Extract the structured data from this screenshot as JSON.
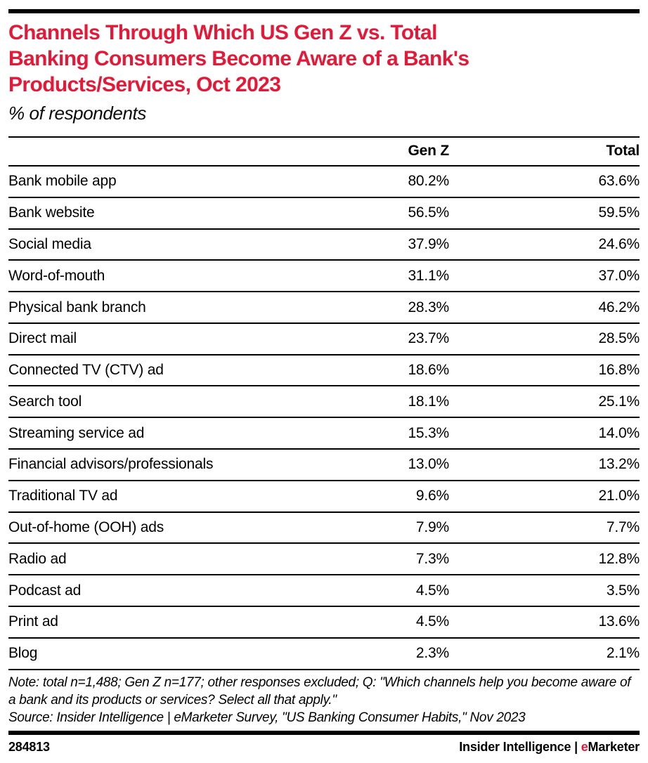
{
  "colors": {
    "accent_red": "#e31937",
    "text_black": "#000000",
    "background": "#ffffff"
  },
  "header": {
    "title_lines": [
      "Channels Through Which US Gen Z vs. Total",
      "Banking Consumers Become Aware of a Bank's",
      "Products/Services, Oct 2023"
    ],
    "subtitle": "% of respondents"
  },
  "table": {
    "columns": {
      "channel": "",
      "genz": "Gen Z",
      "total": "Total"
    },
    "rows": [
      {
        "channel": "Bank mobile app",
        "genz": "80.2%",
        "total": "63.6%"
      },
      {
        "channel": "Bank website",
        "genz": "56.5%",
        "total": "59.5%"
      },
      {
        "channel": "Social media",
        "genz": "37.9%",
        "total": "24.6%"
      },
      {
        "channel": "Word-of-mouth",
        "genz": "31.1%",
        "total": "37.0%"
      },
      {
        "channel": "Physical bank branch",
        "genz": "28.3%",
        "total": "46.2%"
      },
      {
        "channel": "Direct mail",
        "genz": "23.7%",
        "total": "28.5%"
      },
      {
        "channel": "Connected TV (CTV) ad",
        "genz": "18.6%",
        "total": "16.8%"
      },
      {
        "channel": "Search tool",
        "genz": "18.1%",
        "total": "25.1%"
      },
      {
        "channel": "Streaming service ad",
        "genz": "15.3%",
        "total": "14.0%"
      },
      {
        "channel": "Financial advisors/professionals",
        "genz": "13.0%",
        "total": "13.2%"
      },
      {
        "channel": "Traditional TV ad",
        "genz": "9.6%",
        "total": "21.0%"
      },
      {
        "channel": "Out-of-home (OOH) ads",
        "genz": "7.9%",
        "total": "7.7%"
      },
      {
        "channel": "Radio ad",
        "genz": "7.3%",
        "total": "12.8%"
      },
      {
        "channel": "Podcast ad",
        "genz": "4.5%",
        "total": "3.5%"
      },
      {
        "channel": "Print ad",
        "genz": "4.5%",
        "total": "13.6%"
      },
      {
        "channel": "Blog",
        "genz": "2.3%",
        "total": "2.1%"
      }
    ]
  },
  "footnote": {
    "note": "Note: total n=1,488; Gen Z n=177; other responses excluded; Q: \"Which channels help you become aware of a bank and its products or services? Select all that apply.\"",
    "source": "Source: Insider Intelligence | eMarketer Survey, \"US Banking Consumer Habits,\" Nov 2023"
  },
  "footer": {
    "chart_id": "284813",
    "brand_primary": "Insider Intelligence",
    "brand_separator": "|",
    "brand_emarketer_e": "e",
    "brand_emarketer_rest": "Marketer"
  },
  "chart_data": {
    "type": "table",
    "title": "Channels Through Which US Gen Z vs. Total Banking Consumers Become Aware of a Bank's Products/Services, Oct 2023",
    "subtitle": "% of respondents",
    "unit": "% of respondents",
    "date": "Oct 2023",
    "categories": [
      "Bank mobile app",
      "Bank website",
      "Social media",
      "Word-of-mouth",
      "Physical bank branch",
      "Direct mail",
      "Connected TV (CTV) ad",
      "Search tool",
      "Streaming service ad",
      "Financial advisors/professionals",
      "Traditional TV ad",
      "Out-of-home (OOH) ads",
      "Radio ad",
      "Podcast ad",
      "Print ad",
      "Blog"
    ],
    "series": [
      {
        "name": "Gen Z",
        "values": [
          80.2,
          56.5,
          37.9,
          31.1,
          28.3,
          23.7,
          18.6,
          18.1,
          15.3,
          13.0,
          9.6,
          7.9,
          7.3,
          4.5,
          4.5,
          2.3
        ]
      },
      {
        "name": "Total",
        "values": [
          63.6,
          59.5,
          24.6,
          37.0,
          46.2,
          28.5,
          16.8,
          25.1,
          14.0,
          13.2,
          21.0,
          7.7,
          12.8,
          3.5,
          13.6,
          2.1
        ]
      }
    ],
    "note": "total n=1,488; Gen Z n=177; other responses excluded; Q: \"Which channels help you become aware of a bank and its products or services? Select all that apply.\"",
    "source": "Insider Intelligence | eMarketer Survey, \"US Banking Consumer Habits,\" Nov 2023",
    "chart_id": "284813"
  }
}
